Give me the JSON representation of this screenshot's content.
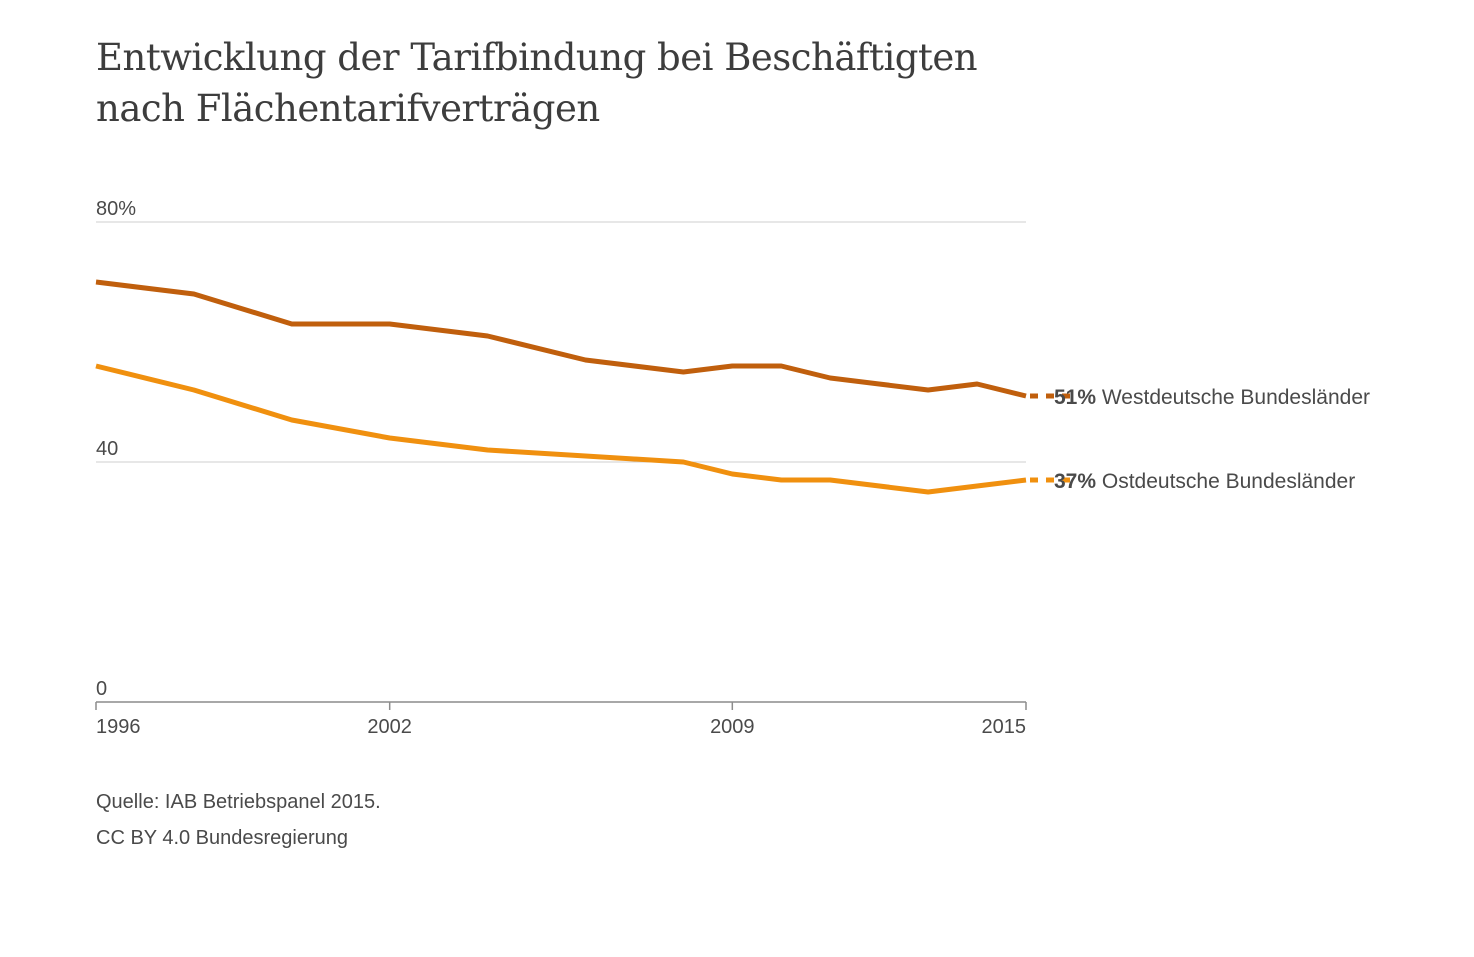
{
  "chart_data": {
    "type": "line",
    "title": "Entwicklung der Tarifbindung bei Beschäftigten nach Flächentarifverträgen",
    "x": [
      1996,
      1998,
      2000,
      2002,
      2004,
      2006,
      2008,
      2009,
      2010,
      2011,
      2013,
      2014,
      2015
    ],
    "xticks": [
      1996,
      2002,
      2009,
      2015
    ],
    "xlim": [
      1996,
      2015
    ],
    "ylim": [
      0,
      80
    ],
    "yticks": [
      {
        "value": 0,
        "label": "0"
      },
      {
        "value": 40,
        "label": "40"
      },
      {
        "value": 80,
        "label": "80%"
      }
    ],
    "grid": true,
    "legend": "inline-right",
    "series": [
      {
        "name": "Westdeutsche Bundesländer",
        "value_label": "51%",
        "color": "#c05f0d",
        "x": [
          1996,
          1998,
          2000,
          2002,
          2004,
          2006,
          2008,
          2009,
          2010,
          2011,
          2013,
          2014,
          2015
        ],
        "values": [
          70,
          68,
          63,
          63,
          61,
          57,
          55,
          56,
          56,
          54,
          52,
          53,
          51
        ]
      },
      {
        "name": "Ostdeutsche Bundesländer",
        "value_label": "37%",
        "color": "#f0900f",
        "x": [
          1996,
          1998,
          2000,
          2002,
          2004,
          2006,
          2008,
          2009,
          2010,
          2011,
          2013,
          2014,
          2015
        ],
        "values": [
          56,
          52,
          47,
          44,
          42,
          41,
          40,
          38,
          37,
          37,
          35,
          36,
          37
        ]
      }
    ]
  },
  "footer": {
    "source": "Quelle: IAB Betriebspanel 2015.",
    "license": "CC BY 4.0 Bundesregierung"
  }
}
